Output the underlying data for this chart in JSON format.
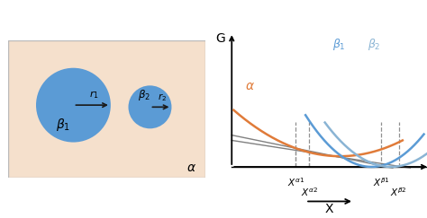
{
  "fig_width": 4.74,
  "fig_height": 2.43,
  "dpi": 100,
  "left_bg_color": "#f5e0cc",
  "circle_color": "#5b9bd5",
  "arrow_color": "#1a1a1a",
  "curve_alpha_color": "#e07b39",
  "curve_beta1_color": "#5b9bd5",
  "curve_beta2_color": "#8ab4d4",
  "tangent_color": "#808080",
  "vline_color": "#909090",
  "axis_color": "#333333"
}
